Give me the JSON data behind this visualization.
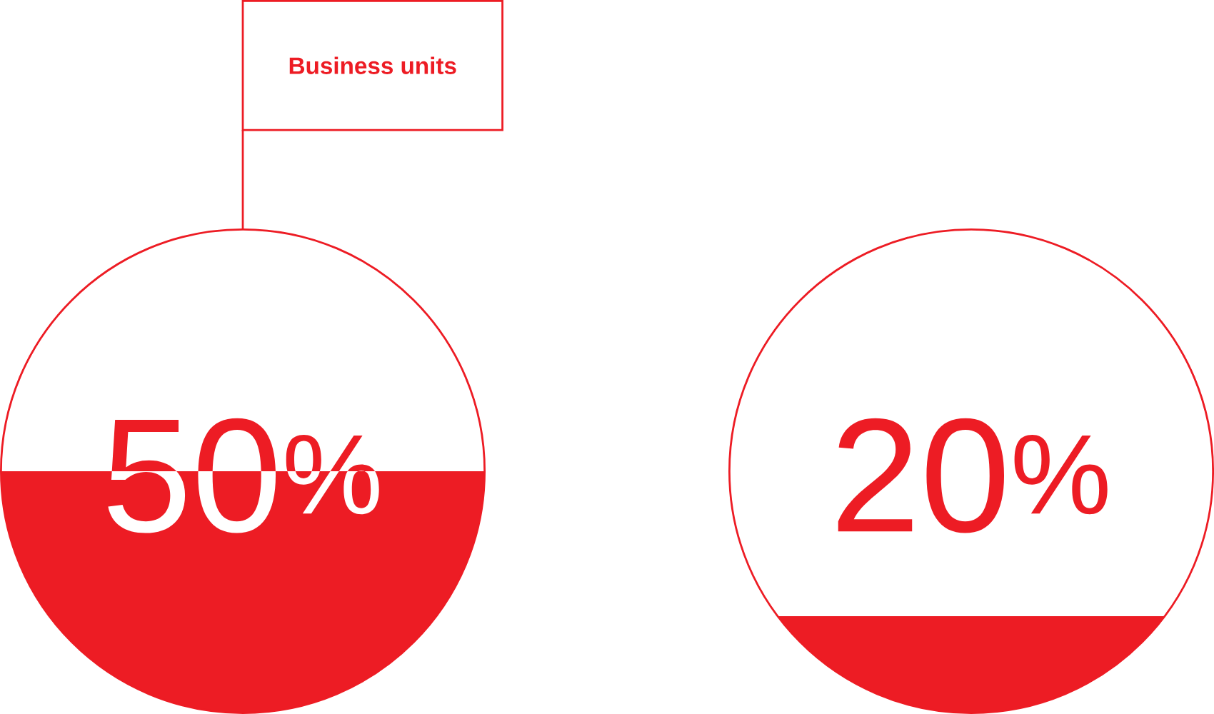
{
  "chart_data": {
    "type": "other",
    "categories": [
      "Business units",
      null
    ],
    "values": [
      50,
      20
    ],
    "value_labels": [
      "50$^{%}$",
      "20$^{%}$"
    ],
    "color": "#ed1c24"
  }
}
